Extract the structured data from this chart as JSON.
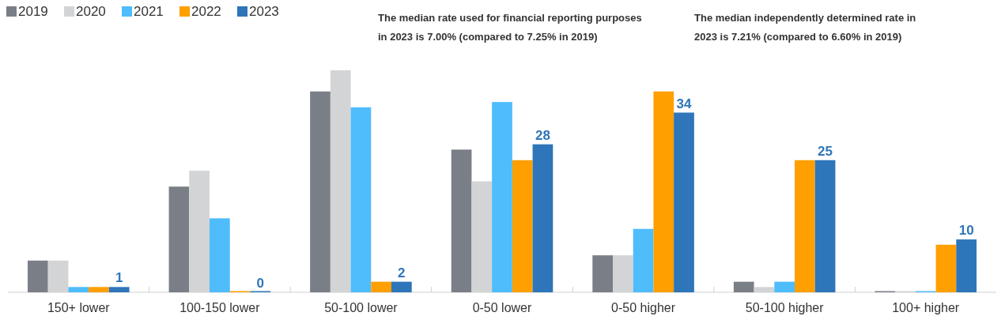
{
  "chart_data": {
    "type": "bar",
    "categories": [
      "150+ lower",
      "100-150 lower",
      "50-100 lower",
      "0-50 lower",
      "0-50 higher",
      "50-100 higher",
      "100+ higher"
    ],
    "legend": "top left",
    "annotations": [
      "The median rate used for financial reporting purposes in 2023 is 7.00% (compared to 7.25% in 2019)",
      "The median independently determined rate in 2023 is 7.21% (compared to 6.60% in 2019)"
    ],
    "series": [
      {
        "name": "2019",
        "color": "#7a7f87",
        "values": [
          6,
          20,
          38,
          27,
          7,
          2,
          0
        ]
      },
      {
        "name": "2020",
        "color": "#d3d4d6",
        "values": [
          6,
          23,
          42,
          21,
          7,
          1,
          0
        ]
      },
      {
        "name": "2021",
        "color": "#4fbcfc",
        "values": [
          1,
          14,
          35,
          36,
          12,
          2,
          0
        ]
      },
      {
        "name": "2022",
        "color": "#ff9f00",
        "values": [
          1,
          0,
          2,
          25,
          38,
          25,
          9
        ]
      },
      {
        "name": "2023",
        "color": "#2e75ba",
        "values": [
          1,
          0,
          2,
          28,
          34,
          25,
          10
        ],
        "value_labels": [
          "1",
          "0",
          "2",
          "28",
          "34",
          "25",
          "10"
        ]
      }
    ]
  }
}
